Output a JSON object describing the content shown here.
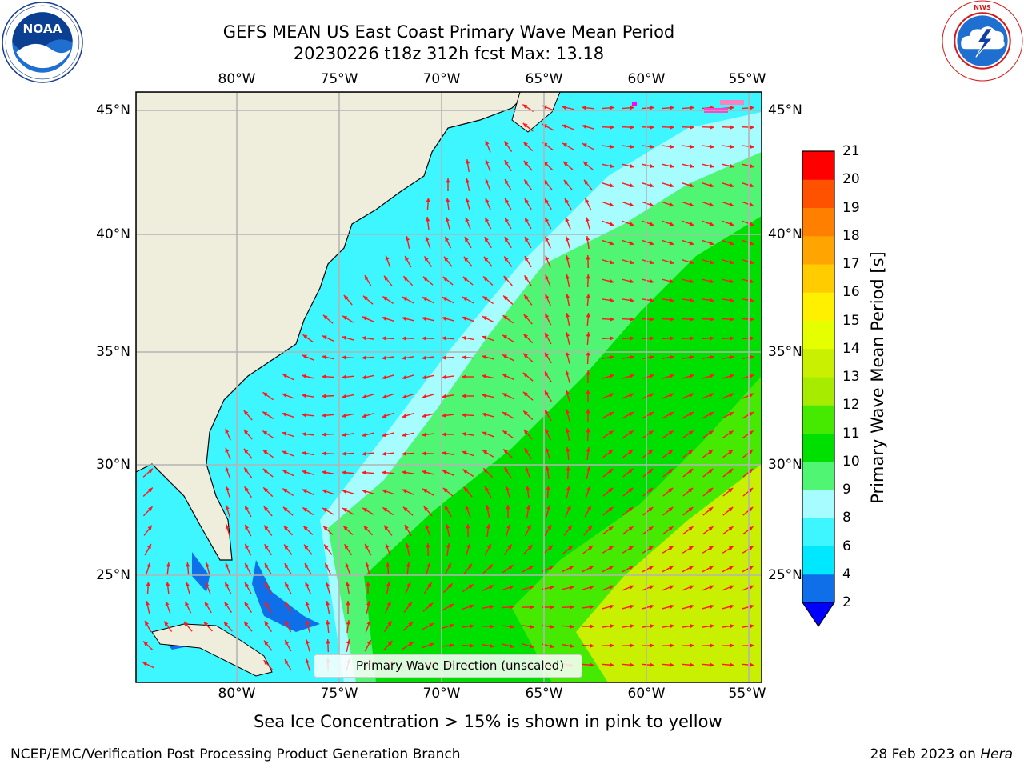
{
  "title": {
    "line1": "GEFS MEAN US East Coast Primary Wave Mean Period",
    "line2": "20230226 t18z 312h fcst   Max: 13.18"
  },
  "logos": {
    "left": {
      "name": "noaa-logo",
      "text": "NOAA",
      "ring_text": "NATIONAL OCEANIC AND ATMOSPHERIC ADMINISTRATION · U.S. DEPARTMENT OF COMMERCE"
    },
    "right": {
      "name": "nws-logo",
      "ring_text": "NATIONAL WEATHER SERVICE"
    }
  },
  "map": {
    "lon_labels": [
      "80°W",
      "75°W",
      "70°W",
      "65°W",
      "60°W",
      "55°W"
    ],
    "lat_labels": [
      "45°N",
      "40°N",
      "35°N",
      "30°N",
      "25°N"
    ],
    "extent": {
      "lon": [
        -85,
        -54.3
      ],
      "lat": [
        20.5,
        46
      ]
    },
    "land_color": "#efeedc",
    "grid_color": "#b4b4b4",
    "arrow_color": "#ff1a1a"
  },
  "colorbar": {
    "label": "Primary Wave Mean Period [s]",
    "ticks": [
      "2",
      "4",
      "6",
      "8",
      "9",
      "10",
      "11",
      "12",
      "13",
      "14",
      "15",
      "16",
      "17",
      "18",
      "19",
      "20",
      "21"
    ],
    "colors": [
      "#0f6fe8",
      "#00e8ff",
      "#3ef6ff",
      "#a6fcff",
      "#4ff573",
      "#00e000",
      "#45ea00",
      "#a7ec00",
      "#c8f000",
      "#e6ff00",
      "#fff000",
      "#ffcc00",
      "#ffa400",
      "#ff8000",
      "#ff5200",
      "#ff0000"
    ],
    "under_color": "#0000ff"
  },
  "legend": {
    "label": "Primary Wave Direction (unscaled)"
  },
  "ice_note": "Sea Ice Concentration > 15% is shown in pink to yellow",
  "footer": {
    "left": "NCEP/EMC/Verification Post Processing Product Generation Branch",
    "date": "28 Feb 2023 on",
    "host": "Hera"
  }
}
